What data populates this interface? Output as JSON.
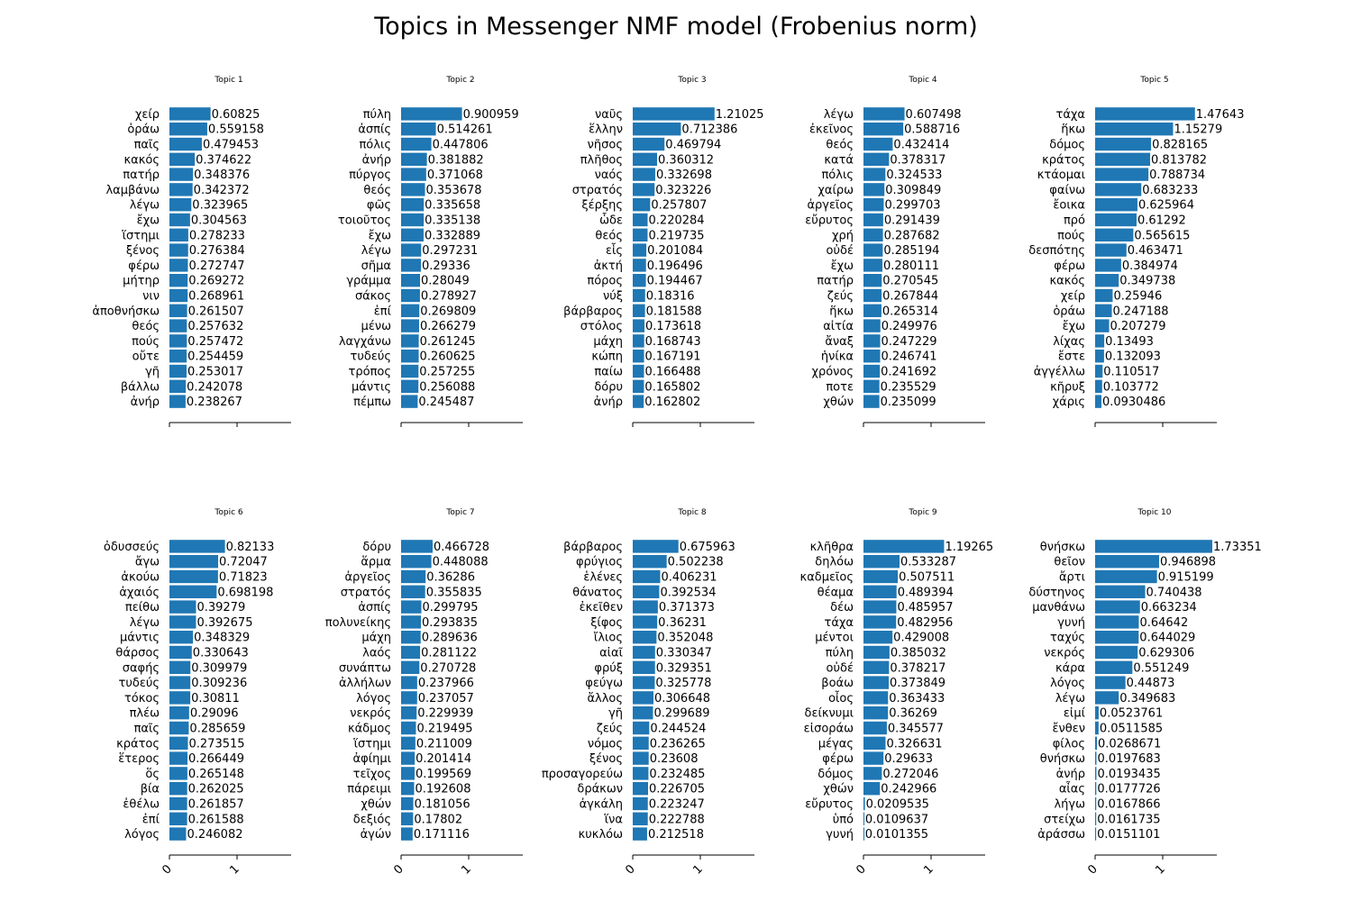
{
  "title": "Topics in Messenger NMF model (Frobenius norm)",
  "bar_color": "#1f77b4",
  "chart_data": [
    {
      "type": "bar",
      "orientation": "horizontal",
      "title": "Topic 1",
      "xlim": [
        0,
        1.9
      ],
      "xticks": [
        0,
        1
      ],
      "categories": [
        "χείρ",
        "ὁράω",
        "παῖς",
        "κακός",
        "πατήρ",
        "λαμβάνω",
        "λέγω",
        "ἔχω",
        "ἵστημι",
        "ξένος",
        "φέρω",
        "μήτηρ",
        "νιν",
        "ἀποθνήσκω",
        "θεός",
        "πούς",
        "οὔτε",
        "γῆ",
        "βάλλω",
        "ἀνήρ"
      ],
      "values": [
        0.60825,
        0.559158,
        0.479453,
        0.374622,
        0.348376,
        0.342372,
        0.323965,
        0.304563,
        0.278233,
        0.276384,
        0.272747,
        0.269272,
        0.268961,
        0.261507,
        0.257632,
        0.257472,
        0.254459,
        0.253017,
        0.242078,
        0.238267
      ],
      "labels": [
        "0.60825",
        "0.559158",
        "0.479453",
        "0.374622",
        "0.348376",
        "0.342372",
        "0.323965",
        "0.304563",
        "0.278233",
        "0.276384",
        "0.272747",
        "0.269272",
        "0.268961",
        "0.261507",
        "0.257632",
        "0.257472",
        "0.254459",
        "0.253017",
        "0.242078",
        "0.238267"
      ]
    },
    {
      "type": "bar",
      "orientation": "horizontal",
      "title": "Topic 2",
      "xlim": [
        0,
        1.9
      ],
      "xticks": [
        0,
        1
      ],
      "categories": [
        "πύλη",
        "ἀσπίς",
        "πόλις",
        "ἀνήρ",
        "πύργος",
        "θεός",
        "φῶς",
        "τοιοῦτος",
        "ἔχω",
        "λέγω",
        "σῆμα",
        "γράμμα",
        "σάκος",
        "ἐπί",
        "μένω",
        "λαγχάνω",
        "τυδεύς",
        "τρόπος",
        "μάντις",
        "πέμπω"
      ],
      "values": [
        0.900959,
        0.514261,
        0.447806,
        0.381882,
        0.371068,
        0.353678,
        0.335658,
        0.335138,
        0.332889,
        0.297231,
        0.29336,
        0.28049,
        0.278927,
        0.269809,
        0.266279,
        0.261245,
        0.260625,
        0.257255,
        0.256088,
        0.245487
      ],
      "labels": [
        "0.900959",
        "0.514261",
        "0.447806",
        "0.381882",
        "0.371068",
        "0.353678",
        "0.335658",
        "0.335138",
        "0.332889",
        "0.297231",
        "0.29336",
        "0.28049",
        "0.278927",
        "0.269809",
        "0.266279",
        "0.261245",
        "0.260625",
        "0.257255",
        "0.256088",
        "0.245487"
      ]
    },
    {
      "type": "bar",
      "orientation": "horizontal",
      "title": "Topic 3",
      "xlim": [
        0,
        1.9
      ],
      "xticks": [
        0,
        1
      ],
      "categories": [
        "ναῦς",
        "ἕλλην",
        "νῆσος",
        "πλῆθος",
        "ναός",
        "στρατός",
        "ξέρξης",
        "ὧδε",
        "θεός",
        "εἷς",
        "ἀκτή",
        "πόρος",
        "νύξ",
        "βάρβαρος",
        "στόλος",
        "μάχη",
        "κώπη",
        "παίω",
        "δόρυ",
        "ἀνήρ"
      ],
      "values": [
        1.21025,
        0.712386,
        0.469794,
        0.360312,
        0.332698,
        0.323226,
        0.257807,
        0.220284,
        0.219735,
        0.201084,
        0.196496,
        0.194467,
        0.18316,
        0.181588,
        0.173618,
        0.168743,
        0.167191,
        0.166488,
        0.165802,
        0.162802
      ],
      "labels": [
        "1.21025",
        "0.712386",
        "0.469794",
        "0.360312",
        "0.332698",
        "0.323226",
        "0.257807",
        "0.220284",
        "0.219735",
        "0.201084",
        "0.196496",
        "0.194467",
        "0.18316",
        "0.181588",
        "0.173618",
        "0.168743",
        "0.167191",
        "0.166488",
        "0.165802",
        "0.162802"
      ]
    },
    {
      "type": "bar",
      "orientation": "horizontal",
      "title": "Topic 4",
      "xlim": [
        0,
        1.9
      ],
      "xticks": [
        0,
        1
      ],
      "categories": [
        "λέγω",
        "ἐκεῖνος",
        "θεός",
        "κατά",
        "πόλις",
        "χαίρω",
        "ἀργεῖος",
        "εὔρυτος",
        "χρή",
        "οὐδέ",
        "ἔχω",
        "πατήρ",
        "ζεύς",
        "ἥκω",
        "αἰτία",
        "ἄναξ",
        "ἡνίκα",
        "χρόνος",
        "ποτε",
        "χθών"
      ],
      "values": [
        0.607498,
        0.588716,
        0.432414,
        0.378317,
        0.324533,
        0.309849,
        0.299703,
        0.291439,
        0.287682,
        0.285194,
        0.280111,
        0.270545,
        0.267844,
        0.265314,
        0.249976,
        0.247229,
        0.246741,
        0.241692,
        0.235529,
        0.235099
      ],
      "labels": [
        "0.607498",
        "0.588716",
        "0.432414",
        "0.378317",
        "0.324533",
        "0.309849",
        "0.299703",
        "0.291439",
        "0.287682",
        "0.285194",
        "0.280111",
        "0.270545",
        "0.267844",
        "0.265314",
        "0.249976",
        "0.247229",
        "0.246741",
        "0.241692",
        "0.235529",
        "0.235099"
      ]
    },
    {
      "type": "bar",
      "orientation": "horizontal",
      "title": "Topic 5",
      "xlim": [
        0,
        1.9
      ],
      "xticks": [
        0,
        1
      ],
      "categories": [
        "τάχα",
        "ἥκω",
        "δόμος",
        "κράτος",
        "κτάομαι",
        "φαίνω",
        "ἔοικα",
        "πρό",
        "πούς",
        "δεσπότης",
        "φέρω",
        "κακός",
        "χείρ",
        "ὁράω",
        "ἔχω",
        "λίχας",
        "ἔστε",
        "ἀγγέλλω",
        "κῆρυξ",
        "χάρις"
      ],
      "values": [
        1.47643,
        1.15279,
        0.828165,
        0.813782,
        0.788734,
        0.683233,
        0.625964,
        0.61292,
        0.565615,
        0.463471,
        0.384974,
        0.349738,
        0.25946,
        0.247188,
        0.207279,
        0.13493,
        0.132093,
        0.110517,
        0.103772,
        0.0930486
      ],
      "labels": [
        "1.47643",
        "1.15279",
        "0.828165",
        "0.813782",
        "0.788734",
        "0.683233",
        "0.625964",
        "0.61292",
        "0.565615",
        "0.463471",
        "0.384974",
        "0.349738",
        "0.25946",
        "0.247188",
        "0.207279",
        "0.13493",
        "0.132093",
        "0.110517",
        "0.103772",
        "0.0930486"
      ]
    },
    {
      "type": "bar",
      "orientation": "horizontal",
      "title": "Topic 6",
      "xlim": [
        0,
        1.9
      ],
      "xticks": [
        0,
        1
      ],
      "categories": [
        "ὀδυσσεύς",
        "ἄγω",
        "ἀκούω",
        "ἀχαιός",
        "πείθω",
        "λέγω",
        "μάντις",
        "θάρσος",
        "σαφής",
        "τυδεύς",
        "τόκος",
        "πλέω",
        "παῖς",
        "κράτος",
        "ἕτερος",
        "ὅς",
        "βία",
        "ἐθέλω",
        "ἐπί",
        "λόγος"
      ],
      "values": [
        0.82133,
        0.72047,
        0.71823,
        0.698198,
        0.39279,
        0.392675,
        0.348329,
        0.330643,
        0.309979,
        0.309236,
        0.30811,
        0.29096,
        0.285659,
        0.273515,
        0.266449,
        0.265148,
        0.262025,
        0.261857,
        0.261588,
        0.246082
      ],
      "labels": [
        "0.82133",
        "0.72047",
        "0.71823",
        "0.698198",
        "0.39279",
        "0.392675",
        "0.348329",
        "0.330643",
        "0.309979",
        "0.309236",
        "0.30811",
        "0.29096",
        "0.285659",
        "0.273515",
        "0.266449",
        "0.265148",
        "0.262025",
        "0.261857",
        "0.261588",
        "0.246082"
      ]
    },
    {
      "type": "bar",
      "orientation": "horizontal",
      "title": "Topic 7",
      "xlim": [
        0,
        1.9
      ],
      "xticks": [
        0,
        1
      ],
      "categories": [
        "δόρυ",
        "ἅρμα",
        "ἀργεῖος",
        "στρατός",
        "ἀσπίς",
        "πολυνείκης",
        "μάχη",
        "λαός",
        "συνάπτω",
        "ἀλλήλων",
        "λόγος",
        "νεκρός",
        "κάδμος",
        "ἵστημι",
        "ἀφίημι",
        "τεῖχος",
        "πάρειμι",
        "χθών",
        "δεξιός",
        "ἀγών"
      ],
      "values": [
        0.466728,
        0.448088,
        0.36286,
        0.355835,
        0.299795,
        0.293835,
        0.289636,
        0.281122,
        0.270728,
        0.237966,
        0.237057,
        0.229939,
        0.219495,
        0.211009,
        0.201414,
        0.199569,
        0.192608,
        0.181056,
        0.17802,
        0.171116
      ],
      "labels": [
        "0.466728",
        "0.448088",
        "0.36286",
        "0.355835",
        "0.299795",
        "0.293835",
        "0.289636",
        "0.281122",
        "0.270728",
        "0.237966",
        "0.237057",
        "0.229939",
        "0.219495",
        "0.211009",
        "0.201414",
        "0.199569",
        "0.192608",
        "0.181056",
        "0.17802",
        "0.171116"
      ]
    },
    {
      "type": "bar",
      "orientation": "horizontal",
      "title": "Topic 8",
      "xlim": [
        0,
        1.9
      ],
      "xticks": [
        0,
        1
      ],
      "categories": [
        "βάρβαρος",
        "φρύγιος",
        "ἑλένες",
        "θάνατος",
        "ἐκεῖθεν",
        "ξίφος",
        "ἴλιος",
        "αἰαῖ",
        "φρύξ",
        "φεύγω",
        "ἄλλος",
        "γῆ",
        "ζεύς",
        "νόμος",
        "ξένος",
        "προσαγορεύω",
        "δράκων",
        "ἀγκάλη",
        "ἵνα",
        "κυκλόω"
      ],
      "values": [
        0.675963,
        0.502238,
        0.406231,
        0.392534,
        0.371373,
        0.36231,
        0.352048,
        0.330347,
        0.329351,
        0.325778,
        0.306648,
        0.299689,
        0.244524,
        0.236265,
        0.23608,
        0.232485,
        0.226705,
        0.223247,
        0.222788,
        0.212518
      ],
      "labels": [
        "0.675963",
        "0.502238",
        "0.406231",
        "0.392534",
        "0.371373",
        "0.36231",
        "0.352048",
        "0.330347",
        "0.329351",
        "0.325778",
        "0.306648",
        "0.299689",
        "0.244524",
        "0.236265",
        "0.23608",
        "0.232485",
        "0.226705",
        "0.223247",
        "0.222788",
        "0.212518"
      ]
    },
    {
      "type": "bar",
      "orientation": "horizontal",
      "title": "Topic 9",
      "xlim": [
        0,
        1.9
      ],
      "xticks": [
        0,
        1
      ],
      "categories": [
        "κλῆθρα",
        "δηλόω",
        "καδμεῖος",
        "θέαμα",
        "δέω",
        "τάχα",
        "μέντοι",
        "πύλη",
        "οὐδέ",
        "βοάω",
        "οἶος",
        "δείκνυμι",
        "εἰσοράω",
        "μέγας",
        "φέρω",
        "δόμος",
        "χθών",
        "εὔρυτος",
        "ὑπό",
        "γυνή"
      ],
      "values": [
        1.19265,
        0.533287,
        0.507511,
        0.489394,
        0.485957,
        0.482956,
        0.429008,
        0.385032,
        0.378217,
        0.373849,
        0.363433,
        0.36269,
        0.345577,
        0.326631,
        0.29633,
        0.272046,
        0.242966,
        0.0209535,
        0.0109637,
        0.0101355
      ],
      "labels": [
        "1.19265",
        "0.533287",
        "0.507511",
        "0.489394",
        "0.485957",
        "0.482956",
        "0.429008",
        "0.385032",
        "0.378217",
        "0.373849",
        "0.363433",
        "0.36269",
        "0.345577",
        "0.326631",
        "0.29633",
        "0.272046",
        "0.242966",
        "0.0209535",
        "0.0109637",
        "0.0101355"
      ]
    },
    {
      "type": "bar",
      "orientation": "horizontal",
      "title": "Topic 10",
      "xlim": [
        0,
        1.9
      ],
      "xticks": [
        0,
        1
      ],
      "categories": [
        "θνήσκω",
        "θεῖον",
        "ἄρτι",
        "δύστηνος",
        "μανθάνω",
        "γυνή",
        "ταχύς",
        "νεκρός",
        "κάρα",
        "λόγος",
        "λέγω",
        "εἰμί",
        "ἔνθεν",
        "φίλος",
        "θνήσκω",
        "ἀνήρ",
        "αἶας",
        "λήγω",
        "στείχω",
        "ἀράσσω"
      ],
      "values": [
        1.73351,
        0.946898,
        0.915199,
        0.740438,
        0.663234,
        0.64642,
        0.644029,
        0.629306,
        0.551249,
        0.44873,
        0.349683,
        0.0523761,
        0.0511585,
        0.0268671,
        0.0197683,
        0.0193435,
        0.0177726,
        0.0167866,
        0.0161735,
        0.0151101
      ],
      "labels": [
        "1.73351",
        "0.946898",
        "0.915199",
        "0.740438",
        "0.663234",
        "0.64642",
        "0.644029",
        "0.629306",
        "0.551249",
        "0.44873",
        "0.349683",
        "0.0523761",
        "0.0511585",
        "0.0268671",
        "0.0197683",
        "0.0193435",
        "0.0177726",
        "0.0167866",
        "0.0161735",
        "0.0151101"
      ]
    }
  ]
}
